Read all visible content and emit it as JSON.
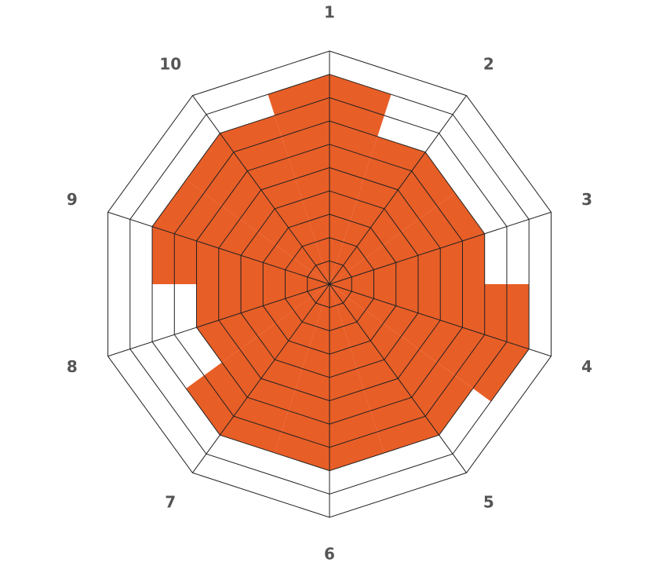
{
  "chart_data": {
    "type": "radar",
    "axes": [
      "1",
      "2",
      "3",
      "4",
      "5",
      "6",
      "7",
      "8",
      "9",
      "10"
    ],
    "values": [
      9,
      7,
      7,
      9,
      8,
      8,
      8,
      6,
      8,
      8
    ],
    "scale_max": 10,
    "rings": 10,
    "fill_color": "#E85E27",
    "grid_color": "#222222",
    "background": "#ffffff",
    "grid": true,
    "legend": "none"
  }
}
